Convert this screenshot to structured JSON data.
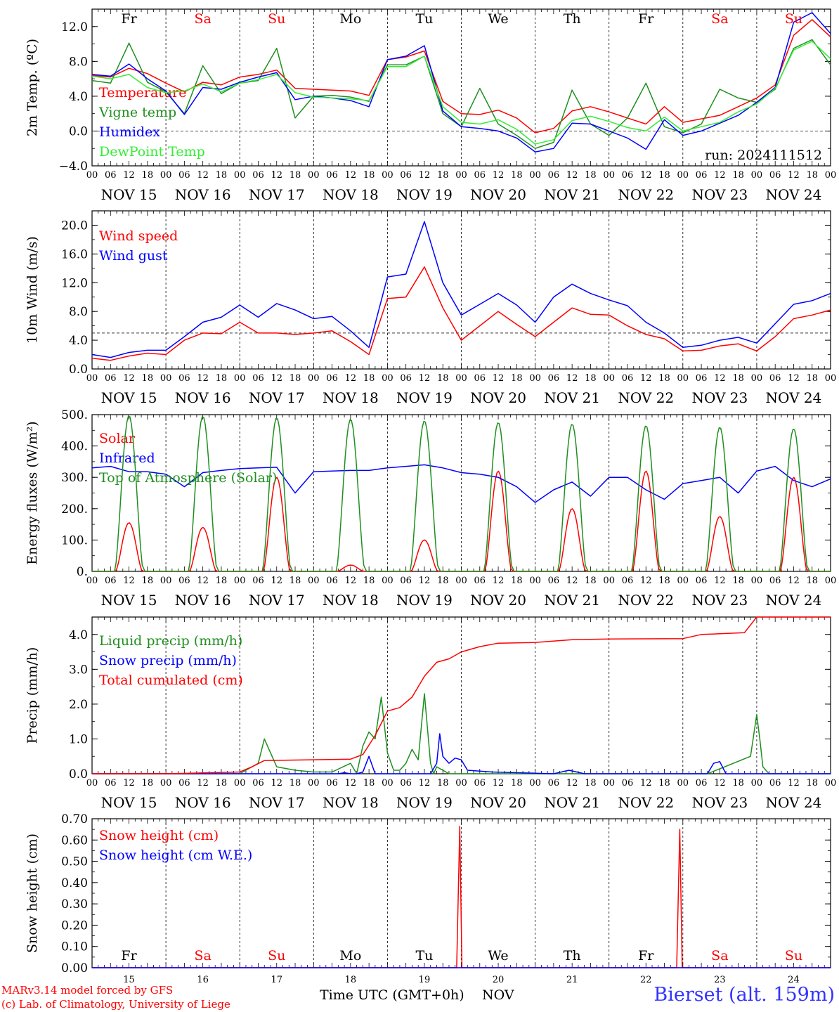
{
  "colors": {
    "red": "#ff0000",
    "green": "#1f8f1f",
    "blue": "#0000ff",
    "lightgreen": "#33ee33",
    "weekend": "#ff0000",
    "weekday": "#000000"
  },
  "days": {
    "weekday": [
      "Fr",
      "Sa",
      "Su",
      "Mo",
      "Tu",
      "We",
      "Th",
      "Fr",
      "Sa",
      "Su"
    ],
    "date": [
      "NOV 15",
      "NOV 16",
      "NOV 17",
      "NOV 18",
      "NOV 19",
      "NOV 20",
      "NOV 21",
      "NOV 22",
      "NOV 23",
      "NOV 24"
    ],
    "num": [
      "15",
      "16",
      "17",
      "18",
      "19",
      "20",
      "21",
      "22",
      "23",
      "24"
    ],
    "weekend": [
      false,
      true,
      true,
      false,
      false,
      false,
      false,
      false,
      true,
      true
    ]
  },
  "hour_ticks": [
    "00",
    "06",
    "12",
    "18"
  ],
  "run_label": "run: 2024111512",
  "footer": {
    "credit1": "MARv3.14 model forced by GFS",
    "credit2": "(c) Lab. of Climatology, University of Liege",
    "time_label": "Time UTC (GMT+0h)",
    "month": "NOV",
    "station": "Bierset (alt. 159m)"
  },
  "chart_data": [
    {
      "type": "line",
      "ylabel": "2m Temp. (ºC)",
      "ylim": [
        -4,
        14
      ],
      "yticks": [
        "−4.0",
        "0.0",
        "4.0",
        "8.0",
        "12.0"
      ],
      "ytick_values": [
        -4,
        0,
        4,
        8,
        12
      ],
      "reference_line": 0,
      "x": [
        0,
        6,
        12,
        18,
        24,
        30,
        36,
        42,
        48,
        54,
        60,
        66,
        72,
        78,
        84,
        90,
        96,
        102,
        108,
        114,
        120,
        126,
        132,
        138,
        144,
        150,
        156,
        162,
        168,
        174,
        180,
        186,
        192,
        198,
        204,
        210,
        216,
        222,
        228,
        234,
        240
      ],
      "x_unit": "hours since NOV 15 00 UTC",
      "series": [
        {
          "name": "Temperature",
          "color": "red",
          "values": [
            6.4,
            6.2,
            7.2,
            6.6,
            5.5,
            4.5,
            5.6,
            5.3,
            6.2,
            6.5,
            7.0,
            4.9,
            4.8,
            4.7,
            4.6,
            4.1,
            8.2,
            8.5,
            9.2,
            3.4,
            2.0,
            1.9,
            2.4,
            1.5,
            -0.2,
            0.3,
            2.3,
            2.8,
            2.2,
            1.5,
            0.8,
            2.8,
            1.0,
            1.4,
            1.8,
            2.8,
            3.8,
            5.3,
            11.0,
            12.8,
            10.8
          ]
        },
        {
          "name": "Vigne temp",
          "color": "green",
          "values": [
            5.8,
            5.5,
            10.1,
            5.6,
            4.5,
            2.0,
            7.5,
            4.3,
            5.5,
            5.8,
            9.5,
            1.5,
            4.0,
            4.1,
            3.9,
            3.4,
            7.6,
            7.6,
            8.6,
            2.0,
            0.5,
            4.9,
            0.8,
            -0.5,
            -2.0,
            -1.3,
            4.7,
            0.8,
            -0.5,
            1.5,
            5.5,
            0.5,
            -0.2,
            0.8,
            4.8,
            3.8,
            3.3,
            4.8,
            9.5,
            10.5,
            7.6
          ]
        },
        {
          "name": "Humidex",
          "color": "blue",
          "values": [
            6.5,
            6.3,
            7.7,
            6.0,
            4.6,
            1.9,
            5.0,
            4.8,
            5.6,
            6.2,
            6.7,
            3.6,
            4.0,
            3.8,
            3.5,
            2.8,
            8.2,
            8.6,
            9.8,
            2.3,
            0.5,
            0.3,
            0.0,
            -0.8,
            -2.4,
            -2.0,
            0.9,
            0.8,
            0.0,
            -0.8,
            -2.1,
            1.3,
            -0.5,
            0.0,
            0.9,
            1.8,
            3.3,
            5.0,
            12.5,
            13.6,
            11.2
          ]
        },
        {
          "name": "DewPoint Temp",
          "color": "lightgreen",
          "values": [
            6.3,
            6.0,
            6.5,
            5.0,
            4.4,
            4.6,
            5.4,
            4.5,
            5.5,
            5.9,
            6.5,
            4.4,
            3.9,
            3.8,
            3.7,
            3.5,
            7.4,
            7.4,
            8.6,
            2.8,
            1.0,
            0.8,
            1.3,
            0.2,
            -1.5,
            -1.0,
            1.2,
            1.7,
            1.1,
            0.4,
            0.0,
            1.6,
            0.0,
            0.5,
            1.0,
            2.2,
            3.1,
            4.9,
            9.3,
            10.3,
            8.3
          ]
        }
      ]
    },
    {
      "type": "line",
      "ylabel": "10m Wind (m/s)",
      "ylim": [
        0,
        22
      ],
      "yticks": [
        "0.0",
        "4.0",
        "8.0",
        "12.0",
        "16.0",
        "20.0"
      ],
      "ytick_values": [
        0,
        4,
        8,
        12,
        16,
        20
      ],
      "reference_line": 5,
      "x": [
        0,
        6,
        12,
        18,
        24,
        30,
        36,
        42,
        48,
        54,
        60,
        66,
        72,
        78,
        84,
        90,
        96,
        102,
        108,
        114,
        120,
        126,
        132,
        138,
        144,
        150,
        156,
        162,
        168,
        174,
        180,
        186,
        192,
        198,
        204,
        210,
        216,
        222,
        228,
        234,
        240
      ],
      "x_unit": "hours since NOV 15 00 UTC",
      "series": [
        {
          "name": "Wind speed",
          "color": "red",
          "values": [
            1.5,
            1.2,
            1.8,
            2.2,
            2.0,
            4.0,
            5.0,
            4.9,
            6.5,
            5.0,
            5.0,
            4.8,
            5.0,
            5.3,
            3.8,
            2.0,
            9.8,
            10.0,
            14.2,
            8.5,
            4.0,
            6.0,
            8.0,
            6.2,
            4.5,
            6.5,
            8.5,
            7.6,
            7.5,
            6.0,
            4.8,
            4.2,
            2.5,
            2.6,
            3.2,
            3.5,
            2.5,
            4.5,
            7.0,
            7.5,
            8.2
          ]
        },
        {
          "name": "Wind gust",
          "color": "blue",
          "values": [
            2.0,
            1.6,
            2.3,
            2.6,
            2.6,
            4.5,
            6.5,
            7.2,
            8.9,
            7.2,
            9.1,
            8.2,
            7.0,
            7.3,
            5.3,
            3.0,
            12.8,
            13.2,
            20.5,
            12.0,
            7.5,
            9.0,
            10.5,
            8.9,
            6.5,
            10.0,
            11.8,
            10.5,
            9.6,
            8.8,
            6.5,
            5.0,
            3.0,
            3.3,
            4.0,
            4.4,
            3.6,
            6.3,
            9.0,
            9.5,
            10.5
          ]
        }
      ]
    },
    {
      "type": "line",
      "ylabel": "Energy fluxes (W/m²)",
      "ylim": [
        0,
        500
      ],
      "yticks": [
        "0.",
        "100.",
        "200.",
        "300.",
        "400.",
        "500."
      ],
      "ytick_values": [
        0,
        100,
        200,
        300,
        400,
        500
      ],
      "x_unit": "hours since NOV 15 00 UTC",
      "series": [
        {
          "name": "Solar",
          "color": "red",
          "peaks": [
            {
              "hour": 12,
              "value": 155
            },
            {
              "hour": 36,
              "value": 140
            },
            {
              "hour": 60,
              "value": 300
            },
            {
              "hour": 84,
              "value": 20
            },
            {
              "hour": 108,
              "value": 100
            },
            {
              "hour": 132,
              "value": 320
            },
            {
              "hour": 156,
              "value": 200
            },
            {
              "hour": 180,
              "value": 320
            },
            {
              "hour": 204,
              "value": 175
            },
            {
              "hour": 228,
              "value": 300
            }
          ]
        },
        {
          "name": "Infrared",
          "color": "blue",
          "x": [
            0,
            6,
            12,
            18,
            24,
            30,
            36,
            42,
            48,
            54,
            60,
            66,
            72,
            78,
            84,
            90,
            96,
            102,
            108,
            114,
            120,
            126,
            132,
            138,
            144,
            150,
            156,
            162,
            168,
            174,
            180,
            186,
            192,
            198,
            204,
            210,
            216,
            222,
            228,
            234,
            240
          ],
          "values": [
            330,
            335,
            318,
            318,
            310,
            270,
            315,
            322,
            328,
            330,
            332,
            250,
            318,
            320,
            322,
            322,
            330,
            335,
            340,
            330,
            315,
            310,
            300,
            270,
            220,
            260,
            285,
            240,
            300,
            300,
            260,
            230,
            280,
            290,
            300,
            250,
            320,
            335,
            290,
            270,
            295
          ]
        },
        {
          "name": "Top of Atmosphere (Solar)",
          "color": "green",
          "peaks": [
            {
              "hour": 12,
              "value": 497
            },
            {
              "hour": 36,
              "value": 495
            },
            {
              "hour": 60,
              "value": 490
            },
            {
              "hour": 84,
              "value": 485
            },
            {
              "hour": 108,
              "value": 480
            },
            {
              "hour": 132,
              "value": 475
            },
            {
              "hour": 156,
              "value": 470
            },
            {
              "hour": 180,
              "value": 465
            },
            {
              "hour": 204,
              "value": 460
            },
            {
              "hour": 228,
              "value": 455
            }
          ]
        }
      ]
    },
    {
      "type": "line",
      "ylabel": "Precip (mm/h)",
      "ylim": [
        0,
        4.5
      ],
      "yticks": [
        "0.0",
        "1.0",
        "2.0",
        "3.0",
        "4.0"
      ],
      "ytick_values": [
        0,
        1,
        2,
        3,
        4
      ],
      "x_unit": "hours since NOV 15 00 UTC",
      "series": [
        {
          "name": "Liquid precip (mm/h)",
          "color": "green",
          "x": [
            0,
            24,
            48,
            54,
            56,
            60,
            66,
            72,
            78,
            84,
            86,
            88,
            90,
            92,
            94,
            96,
            98,
            100,
            102,
            104,
            106,
            108,
            110,
            111,
            112,
            114,
            116,
            120,
            130,
            160,
            200,
            214,
            216,
            217,
            218,
            220,
            240
          ],
          "values": [
            0,
            0,
            0,
            0.3,
            1.0,
            0.2,
            0.1,
            0.05,
            0.05,
            0.3,
            0.0,
            0.8,
            1.2,
            1.0,
            2.2,
            0.6,
            0.1,
            0.1,
            0.3,
            0.7,
            0.4,
            2.3,
            0.3,
            0.0,
            0.2,
            0.1,
            0.0,
            0.0,
            0.0,
            0.0,
            0.0,
            0.5,
            1.7,
            1.0,
            0.2,
            0.0,
            0.0
          ]
        },
        {
          "name": "Snow precip (mm/h)",
          "color": "blue",
          "x": [
            0,
            80,
            82,
            84,
            86,
            88,
            90,
            92,
            110,
            112,
            113,
            114,
            116,
            118,
            120,
            122,
            130,
            150,
            155,
            160,
            190,
            200,
            202,
            204,
            206,
            210,
            240
          ],
          "values": [
            0,
            0,
            0.03,
            0.0,
            0.0,
            0.05,
            0.5,
            0.0,
            0.0,
            0.3,
            1.15,
            0.5,
            0.3,
            0.45,
            0.4,
            0.1,
            0.05,
            0.0,
            0.1,
            0.0,
            0.0,
            0.0,
            0.3,
            0.35,
            0.0,
            0.0,
            0.0
          ]
        },
        {
          "name": "Total cumulated (cm)",
          "color": "red",
          "x": [
            0,
            24,
            48,
            52,
            56,
            84,
            88,
            92,
            96,
            100,
            104,
            108,
            112,
            116,
            120,
            126,
            132,
            144,
            156,
            168,
            192,
            198,
            204,
            212,
            216,
            218,
            240
          ],
          "values": [
            0.0,
            0.0,
            0.05,
            0.2,
            0.38,
            0.42,
            0.55,
            1.1,
            1.8,
            1.9,
            2.2,
            2.8,
            3.2,
            3.3,
            3.5,
            3.65,
            3.75,
            3.77,
            3.85,
            3.87,
            3.88,
            4.0,
            4.02,
            4.05,
            4.5,
            4.5,
            4.5
          ]
        }
      ]
    },
    {
      "type": "line",
      "ylabel": "Snow height (cm)",
      "ylim": [
        0,
        0.7
      ],
      "yticks": [
        "0.00",
        "0.10",
        "0.20",
        "0.30",
        "0.40",
        "0.50",
        "0.60",
        "0.70"
      ],
      "ytick_values": [
        0,
        0.1,
        0.2,
        0.3,
        0.4,
        0.5,
        0.6,
        0.7
      ],
      "x_unit": "hours since NOV 15 00 UTC",
      "series": [
        {
          "name": "Snow height (cm)",
          "color": "red",
          "x": [
            0,
            118.5,
            119.5,
            120.2,
            190,
            191,
            191.8,
            240
          ],
          "values": [
            0,
            0,
            0.665,
            0,
            0,
            0.65,
            0,
            0
          ]
        },
        {
          "name": "Snow height (cm W.E.)",
          "color": "blue",
          "x": [
            0,
            240
          ],
          "values": [
            0,
            0
          ]
        }
      ]
    }
  ]
}
